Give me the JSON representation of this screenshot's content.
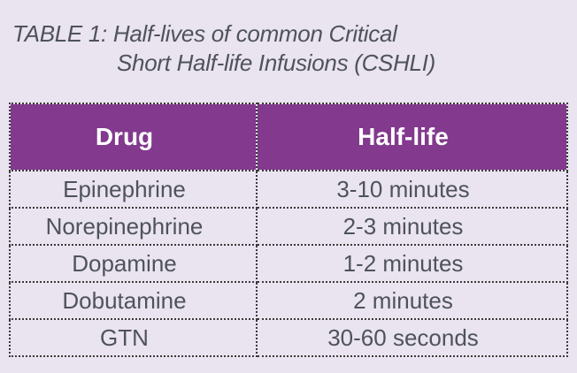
{
  "page": {
    "background": "#eae3f0"
  },
  "title": {
    "line1": "TABLE 1: Half-lives of common Critical",
    "line2": "Short Half-life Infusions (CSHLI)"
  },
  "table": {
    "header": {
      "col1": "Drug",
      "col2": "Half-life"
    },
    "rows": [
      {
        "drug": "Epinephrine",
        "half_life": "3-10 minutes"
      },
      {
        "drug": "Norepinephrine",
        "half_life": "2-3 minutes"
      },
      {
        "drug": "Dopamine",
        "half_life": "1-2 minutes"
      },
      {
        "drug": "Dobutamine",
        "half_life": "2 minutes"
      },
      {
        "drug": "GTN",
        "half_life": "30-60 seconds"
      }
    ]
  },
  "colors": {
    "background": "#eae3f0",
    "header_bg": "#82398e",
    "header_text": "#ffffff",
    "body_text": "#4e535c",
    "border": "#3a3a3a"
  },
  "chart_data": {
    "type": "table",
    "title": "TABLE 1: Half-lives of common Critical Short Half-life Infusions (CSHLI)",
    "columns": [
      "Drug",
      "Half-life"
    ],
    "rows": [
      [
        "Epinephrine",
        "3-10 minutes"
      ],
      [
        "Norepinephrine",
        "2-3 minutes"
      ],
      [
        "Dopamine",
        "1-2 minutes"
      ],
      [
        "Dobutamine",
        "2 minutes"
      ],
      [
        "GTN",
        "30-60 seconds"
      ]
    ]
  }
}
